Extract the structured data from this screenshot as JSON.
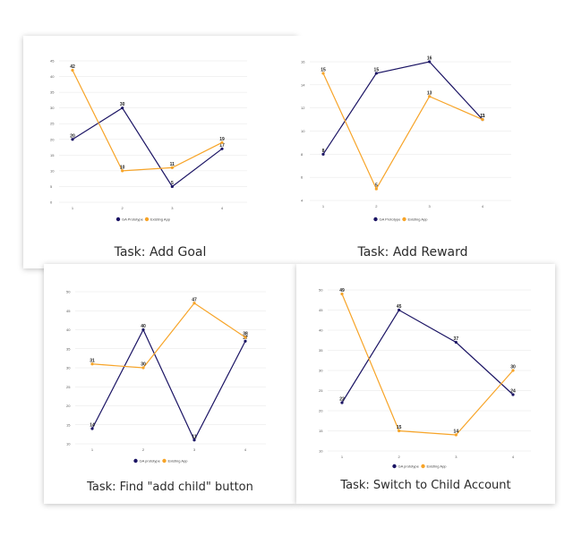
{
  "colors": {
    "prototype": "#1b1464",
    "existing": "#f7a428",
    "grid": "#e6e6e6"
  },
  "charts": [
    {
      "caption": "Task: Add Goal",
      "chart_data": {
        "type": "line",
        "categories": [
          "1",
          "2",
          "3",
          "4"
        ],
        "yticks": [
          "0",
          "5",
          "10",
          "15",
          "20",
          "25",
          "30",
          "35",
          "40",
          "45"
        ],
        "ylim": [
          0,
          45
        ],
        "grid": true,
        "legend_placement": "bottom",
        "series": [
          {
            "name": "GA Prototype",
            "values": [
              20,
              30,
              5,
              17
            ],
            "labels": [
              "20",
              "30",
              "5",
              "17"
            ]
          },
          {
            "name": "Existing App",
            "values": [
              42,
              10,
              11,
              19
            ],
            "labels": [
              "42",
              "10",
              "11",
              "19"
            ]
          }
        ]
      }
    },
    {
      "caption": "Task: Add Reward",
      "chart_data": {
        "type": "line",
        "categories": [
          "1",
          "2",
          "3",
          "4"
        ],
        "yticks": [
          "4",
          "6",
          "8",
          "10",
          "12",
          "14",
          "16"
        ],
        "ylim": [
          4,
          16
        ],
        "grid": true,
        "legend_placement": "bottom",
        "series": [
          {
            "name": "GA Prototype",
            "values": [
              8,
              15,
              16,
              11
            ],
            "labels": [
              "8",
              "15",
              "16",
              "11"
            ]
          },
          {
            "name": "Existing App",
            "values": [
              15,
              5,
              13,
              11
            ],
            "labels": [
              "15",
              "5",
              "13",
              "11"
            ]
          }
        ]
      }
    },
    {
      "caption": "Task: Find \"add child\" button",
      "chart_data": {
        "type": "line",
        "categories": [
          "1",
          "2",
          "3",
          "4"
        ],
        "yticks": [
          "10",
          "15",
          "20",
          "25",
          "30",
          "35",
          "40",
          "45",
          "50"
        ],
        "ylim": [
          10,
          50
        ],
        "grid": true,
        "legend_placement": "bottom",
        "series": [
          {
            "name": "GA prototype",
            "values": [
              14,
              40,
              11,
              37
            ],
            "labels": [
              "14",
              "40",
              "11",
              "37"
            ]
          },
          {
            "name": "Existing App",
            "values": [
              31,
              30,
              47,
              38
            ],
            "labels": [
              "31",
              "30",
              "47",
              "38"
            ]
          }
        ]
      }
    },
    {
      "caption": "Task: Switch to Child Account",
      "chart_data": {
        "type": "line",
        "categories": [
          "1",
          "2",
          "3",
          "4"
        ],
        "yticks": [
          "10",
          "15",
          "20",
          "25",
          "30",
          "35",
          "40",
          "45",
          "50"
        ],
        "ylim": [
          10,
          50
        ],
        "grid": true,
        "legend_placement": "bottom",
        "series": [
          {
            "name": "GA prototype",
            "values": [
              22,
              45,
              37,
              24
            ],
            "labels": [
              "22",
              "45",
              "37",
              "24"
            ]
          },
          {
            "name": "Existing App",
            "values": [
              49,
              15,
              14,
              30
            ],
            "labels": [
              "49",
              "15",
              "14",
              "30"
            ]
          }
        ]
      }
    }
  ]
}
